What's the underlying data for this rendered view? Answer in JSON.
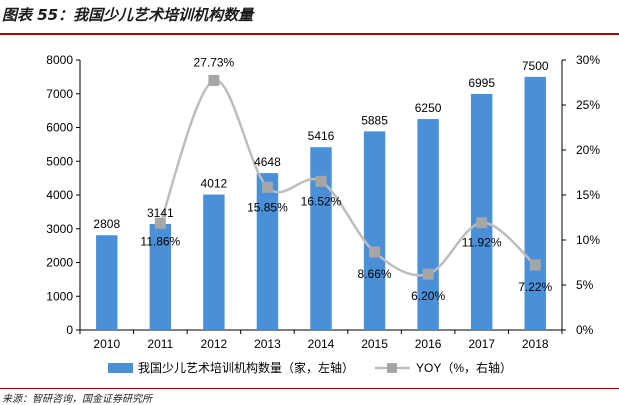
{
  "header": {
    "title": "图表 55：我国少儿艺术培训机构数量"
  },
  "footer": {
    "source": "来源：智研咨询，国金证券研究所"
  },
  "colors": {
    "bar": "#4a90d9",
    "line": "#bdbdbd",
    "marker": "#a6a6a6",
    "rule": "#b00000"
  },
  "chart_data": {
    "type": "bar",
    "categories": [
      "2010",
      "2011",
      "2012",
      "2013",
      "2014",
      "2015",
      "2016",
      "2017",
      "2018"
    ],
    "series": [
      {
        "name": "我国少儿艺术培训机构数量（家，左轴）",
        "type": "bar",
        "axis": "left",
        "values": [
          2808,
          3141,
          4012,
          4648,
          5416,
          5885,
          6250,
          6995,
          7500
        ],
        "labels": [
          "2808",
          "3141",
          "4012",
          "4648",
          "5416",
          "5885",
          "6250",
          "6995",
          "7500"
        ]
      },
      {
        "name": "YOY（%，右轴）",
        "type": "line",
        "axis": "right",
        "values": [
          null,
          11.86,
          27.73,
          15.85,
          16.52,
          8.66,
          6.2,
          11.92,
          7.22
        ],
        "labels": [
          "",
          "11.86%",
          "27.73%",
          "15.85%",
          "16.52%",
          "8.66%",
          "6.20%",
          "11.92%",
          "7.22%"
        ]
      }
    ],
    "y_left": {
      "min": 0,
      "max": 8000,
      "ticks": [
        "0",
        "1000",
        "2000",
        "3000",
        "4000",
        "5000",
        "6000",
        "7000",
        "8000"
      ]
    },
    "y_right": {
      "min": 0,
      "max": 30,
      "ticks": [
        "0%",
        "5%",
        "10%",
        "15%",
        "20%",
        "25%",
        "30%"
      ]
    },
    "grid": false,
    "legend": "bottom"
  }
}
